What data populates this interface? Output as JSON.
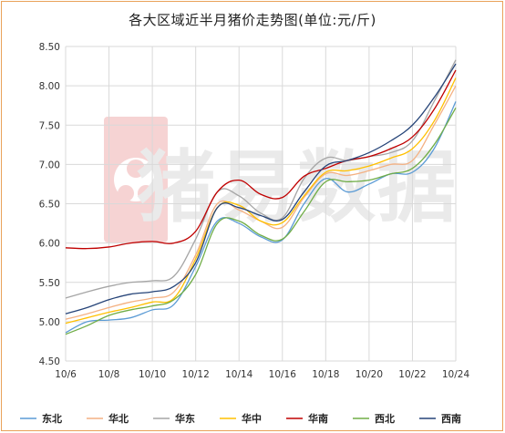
{
  "chart_data": {
    "type": "line",
    "title": "各大区域近半月猪价走势图(单位:元/斤)",
    "watermark": "猪易数据",
    "xlabel": "",
    "ylabel": "",
    "ylim": [
      4.5,
      8.5
    ],
    "yticks": [
      "4.50",
      "5.00",
      "5.50",
      "6.00",
      "6.50",
      "7.00",
      "7.50",
      "8.00",
      "8.50"
    ],
    "xticks": [
      "10/6",
      "10/8",
      "10/10",
      "10/12",
      "10/14",
      "10/16",
      "10/18",
      "10/20",
      "10/22",
      "10/24"
    ],
    "categories": [
      "10/6",
      "10/7",
      "10/8",
      "10/9",
      "10/10",
      "10/11",
      "10/12",
      "10/13",
      "10/14",
      "10/15",
      "10/16",
      "10/17",
      "10/18",
      "10/19",
      "10/20",
      "10/21",
      "10/22",
      "10/23",
      "10/24"
    ],
    "grid": true,
    "legend_position": "bottom",
    "series": [
      {
        "name": "东北",
        "color": "#5b9bd5",
        "values": [
          4.86,
          5.0,
          5.02,
          5.05,
          5.15,
          5.22,
          5.7,
          6.28,
          6.25,
          6.08,
          6.04,
          6.5,
          6.82,
          6.65,
          6.75,
          6.88,
          6.9,
          7.2,
          7.8
        ]
      },
      {
        "name": "华北",
        "color": "#f4b183",
        "values": [
          5.03,
          5.1,
          5.18,
          5.25,
          5.3,
          5.38,
          5.85,
          6.5,
          6.42,
          6.28,
          6.2,
          6.58,
          6.88,
          6.86,
          6.92,
          7.0,
          7.05,
          7.5,
          8.0
        ]
      },
      {
        "name": "华东",
        "color": "#a5a5a5",
        "values": [
          5.3,
          5.38,
          5.45,
          5.5,
          5.52,
          5.58,
          6.05,
          6.65,
          6.6,
          6.38,
          6.32,
          6.82,
          7.08,
          7.05,
          7.1,
          7.15,
          7.3,
          7.8,
          8.33
        ]
      },
      {
        "name": "华中",
        "color": "#ffc000",
        "values": [
          4.98,
          5.05,
          5.12,
          5.18,
          5.25,
          5.3,
          5.8,
          6.45,
          6.48,
          6.28,
          6.26,
          6.6,
          6.9,
          6.92,
          6.98,
          7.08,
          7.2,
          7.55,
          8.1
        ]
      },
      {
        "name": "华南",
        "color": "#c00000",
        "values": [
          5.94,
          5.93,
          5.95,
          6.0,
          6.02,
          6.0,
          6.15,
          6.65,
          6.8,
          6.62,
          6.58,
          6.85,
          6.95,
          7.05,
          7.1,
          7.2,
          7.35,
          7.7,
          8.2
        ]
      },
      {
        "name": "西北",
        "color": "#70ad47",
        "values": [
          4.84,
          4.95,
          5.08,
          5.15,
          5.2,
          5.28,
          5.6,
          6.25,
          6.28,
          6.1,
          6.05,
          6.4,
          6.78,
          6.78,
          6.8,
          6.88,
          6.95,
          7.25,
          7.72
        ]
      },
      {
        "name": "西南",
        "color": "#264478",
        "values": [
          5.1,
          5.18,
          5.28,
          5.35,
          5.38,
          5.45,
          5.75,
          6.45,
          6.45,
          6.35,
          6.3,
          6.65,
          6.98,
          7.05,
          7.15,
          7.3,
          7.5,
          7.85,
          8.28
        ]
      }
    ]
  }
}
